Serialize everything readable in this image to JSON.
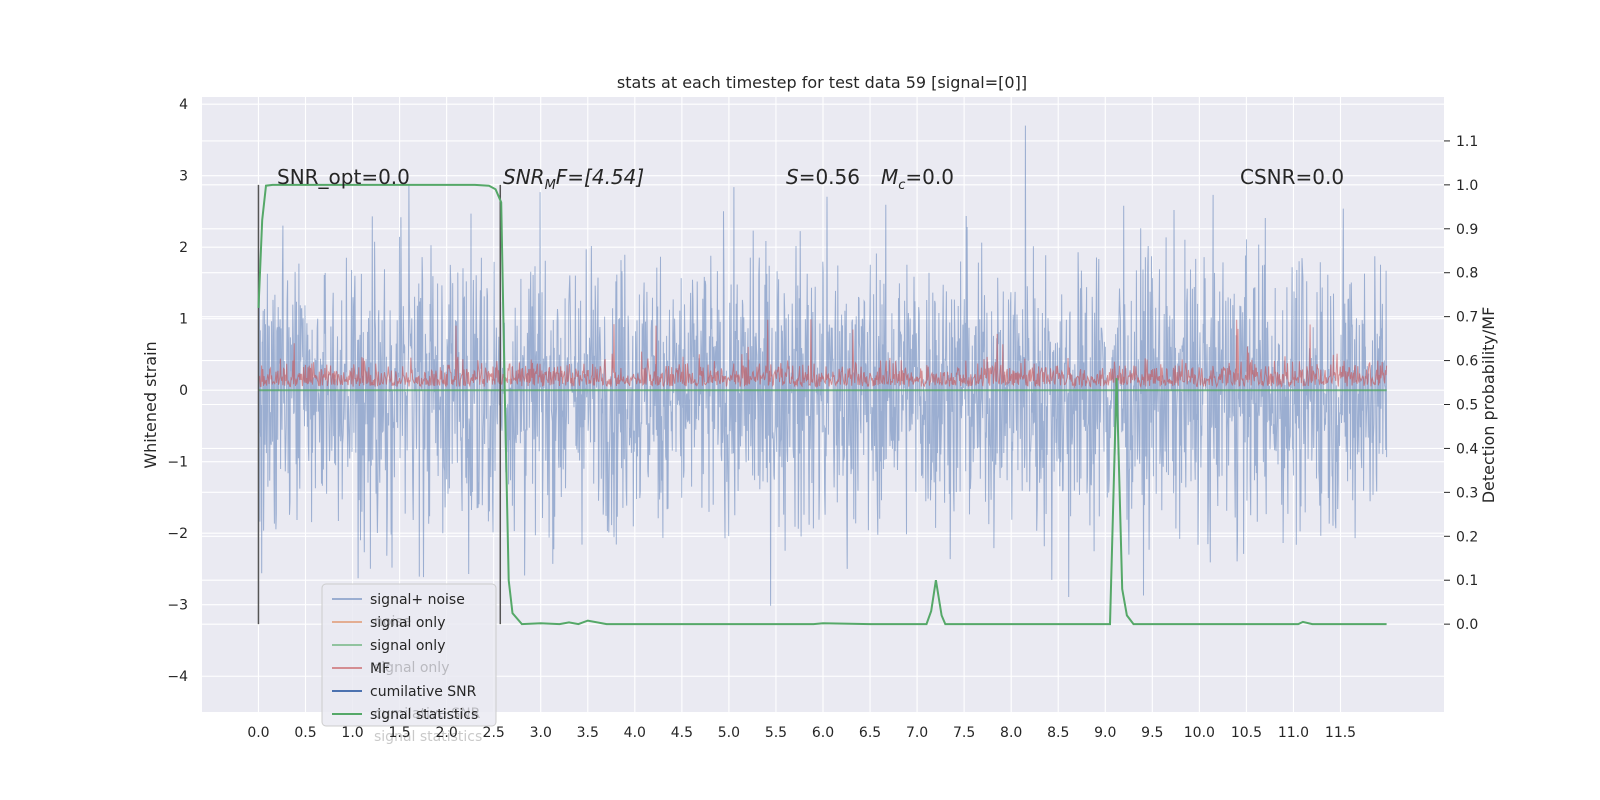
{
  "chart_data": {
    "type": "line",
    "title": "stats at each timestep for test data 59 [signal=[0]]",
    "xlabel": "",
    "ylabel_left": "Whitened strain",
    "ylabel_right": "Detection probability/MF",
    "xlim": [
      -0.6,
      12.6
    ],
    "ylim_left": [
      -4.5,
      4.1
    ],
    "ylim_right": [
      -0.2,
      1.2
    ],
    "x_ticks": [
      "0.0",
      "0.5",
      "1.0",
      "1.5",
      "2.0",
      "2.5",
      "3.0",
      "3.5",
      "4.0",
      "4.5",
      "5.0",
      "5.5",
      "6.0",
      "6.5",
      "7.0",
      "7.5",
      "8.0",
      "8.5",
      "9.0",
      "9.5",
      "10.0",
      "10.5",
      "11.0",
      "11.5"
    ],
    "y_ticks_left": [
      "4",
      "3",
      "2",
      "1",
      "0",
      "−1",
      "−2",
      "−3",
      "−4"
    ],
    "y_ticks_right": [
      "1.1",
      "1.0",
      "0.9",
      "0.8",
      "0.7",
      "0.6",
      "0.5",
      "0.4",
      "0.3",
      "0.2",
      "0.1",
      "0.0"
    ],
    "grid": true,
    "legend_position": "lower-left",
    "annotations": {
      "snr_opt": "SNR_opt=0.0",
      "snr_mf_main": "SNR",
      "snr_mf_sub": "M",
      "snr_mf_rest": "F=[4.54]",
      "s_main": "S",
      "s_rest": "=0.56",
      "mc_main": "M",
      "mc_sub": "c",
      "mc_rest": "=0.0",
      "csnr": "CSNR=0.0"
    },
    "legend": [
      {
        "label": "signal+ noise",
        "color": "#4c72b0",
        "alpha": 0.5
      },
      {
        "label": "signal only",
        "color": "#dd8452",
        "alpha": 0.6
      },
      {
        "label": "signal only",
        "color": "#55a868",
        "alpha": 0.6
      },
      {
        "label": "MF",
        "color": "#c44e52",
        "alpha": 0.6
      },
      {
        "label": "cumilative SNR",
        "color": "#4c72b0",
        "alpha": 1.0
      },
      {
        "label": "signal statistics",
        "color": "#55a868",
        "alpha": 1.0
      }
    ],
    "ghost_legend_labels": [
      "noise",
      "signal only",
      "cumilative SNR",
      "signal statistics"
    ],
    "series": [
      {
        "name": "signal+ noise",
        "axis": "left",
        "description_shown": "dense noise trace, roughly within ±2.5 with spikes to about ±3.7",
        "x_range": [
          0.0,
          11.99
        ],
        "envelope": {
          "typical_abs": 2.2,
          "max_abs": 3.7
        }
      },
      {
        "name": "MF",
        "axis": "left",
        "x_range": [
          0.0,
          11.99
        ],
        "envelope": {
          "baseline": 0.05,
          "typical_max": 0.45,
          "peak": 1.0
        }
      },
      {
        "name": "signal only",
        "axis": "left",
        "x_range": [
          0.0,
          11.99
        ],
        "constant": 0.0
      },
      {
        "name": "signal statistics",
        "axis": "right",
        "x": [
          0.0,
          0.04,
          0.08,
          0.15,
          0.5,
          1.0,
          1.5,
          2.0,
          2.3,
          2.45,
          2.52,
          2.58,
          2.62,
          2.66,
          2.7,
          2.8,
          3.0,
          3.2,
          3.3,
          3.4,
          3.5,
          3.7,
          4.0,
          5.0,
          5.9,
          6.0,
          6.5,
          7.0,
          7.1,
          7.15,
          7.2,
          7.26,
          7.3,
          7.5,
          8.0,
          8.5,
          9.0,
          9.05,
          9.12,
          9.18,
          9.23,
          9.3,
          10.0,
          11.0,
          11.05,
          11.1,
          11.2,
          11.5,
          11.9,
          11.99
        ],
        "y": [
          0.72,
          0.92,
          0.998,
          1.0,
          1.0,
          1.0,
          1.0,
          1.0,
          1.0,
          0.998,
          0.99,
          0.96,
          0.5,
          0.1,
          0.025,
          0.0,
          0.002,
          0.0,
          0.004,
          0.0,
          0.008,
          0.0,
          0.0,
          0.0,
          0.0,
          0.002,
          0.0,
          0.0,
          0.0,
          0.03,
          0.1,
          0.02,
          0.0,
          0.0,
          0.0,
          0.0,
          0.0,
          0.0,
          0.56,
          0.08,
          0.02,
          0.0,
          0.0,
          0.0,
          0.0,
          0.005,
          0.0,
          0.0,
          0.0,
          0.0
        ]
      }
    ],
    "vlines": [
      {
        "x": 0.0,
        "y_range_right": [
          0.0,
          1.0
        ],
        "color": "#555555"
      },
      {
        "x": 2.57,
        "y_range_right": [
          0.0,
          1.0
        ],
        "color": "#555555"
      }
    ]
  }
}
